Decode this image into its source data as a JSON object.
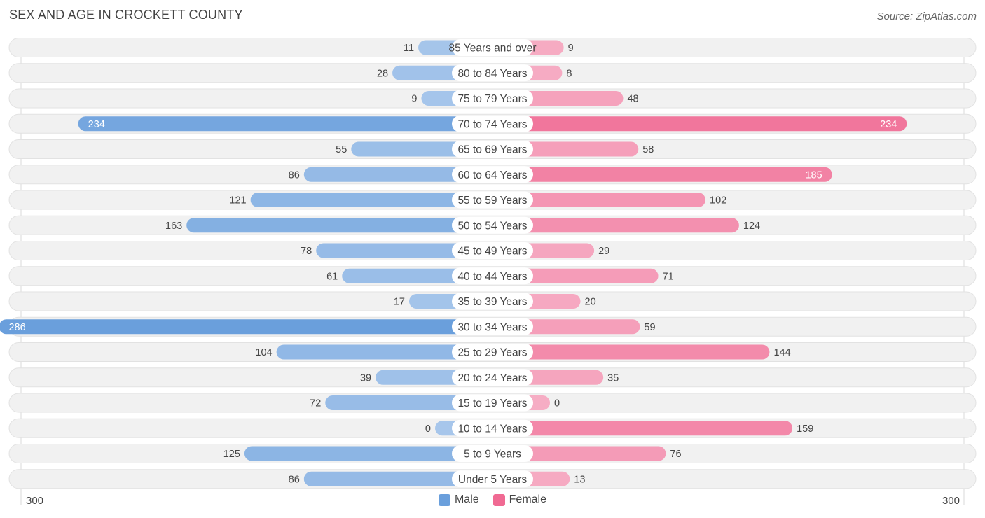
{
  "header": {
    "title": "SEX AND AGE IN CROCKETT COUNTY",
    "source": "Source: ZipAtlas.com"
  },
  "colors": {
    "male_light": "#a7c6eb",
    "male_dark": "#6a9fdc",
    "female_light": "#f6adc4",
    "female_dark": "#f06a93",
    "row_bg": "#f1f1f1"
  },
  "chart_data": {
    "type": "bar",
    "orientation": "horizontal-diverging",
    "title": "SEX AND AGE IN CROCKETT COUNTY",
    "categories": [
      "85 Years and over",
      "80 to 84 Years",
      "75 to 79 Years",
      "70 to 74 Years",
      "65 to 69 Years",
      "60 to 64 Years",
      "55 to 59 Years",
      "50 to 54 Years",
      "45 to 49 Years",
      "40 to 44 Years",
      "35 to 39 Years",
      "30 to 34 Years",
      "25 to 29 Years",
      "20 to 24 Years",
      "15 to 19 Years",
      "10 to 14 Years",
      "5 to 9 Years",
      "Under 5 Years"
    ],
    "series": [
      {
        "name": "Male",
        "values": [
          11,
          28,
          9,
          234,
          55,
          86,
          121,
          163,
          78,
          61,
          17,
          286,
          104,
          39,
          72,
          0,
          125,
          86
        ]
      },
      {
        "name": "Female",
        "values": [
          9,
          8,
          48,
          234,
          58,
          185,
          102,
          124,
          29,
          71,
          20,
          59,
          144,
          35,
          0,
          159,
          76,
          13
        ]
      }
    ],
    "xlim": [
      -300,
      300
    ],
    "axis_left_label": "300",
    "axis_right_label": "300",
    "legend": [
      "Male",
      "Female"
    ],
    "legend_position": "bottom-center"
  }
}
